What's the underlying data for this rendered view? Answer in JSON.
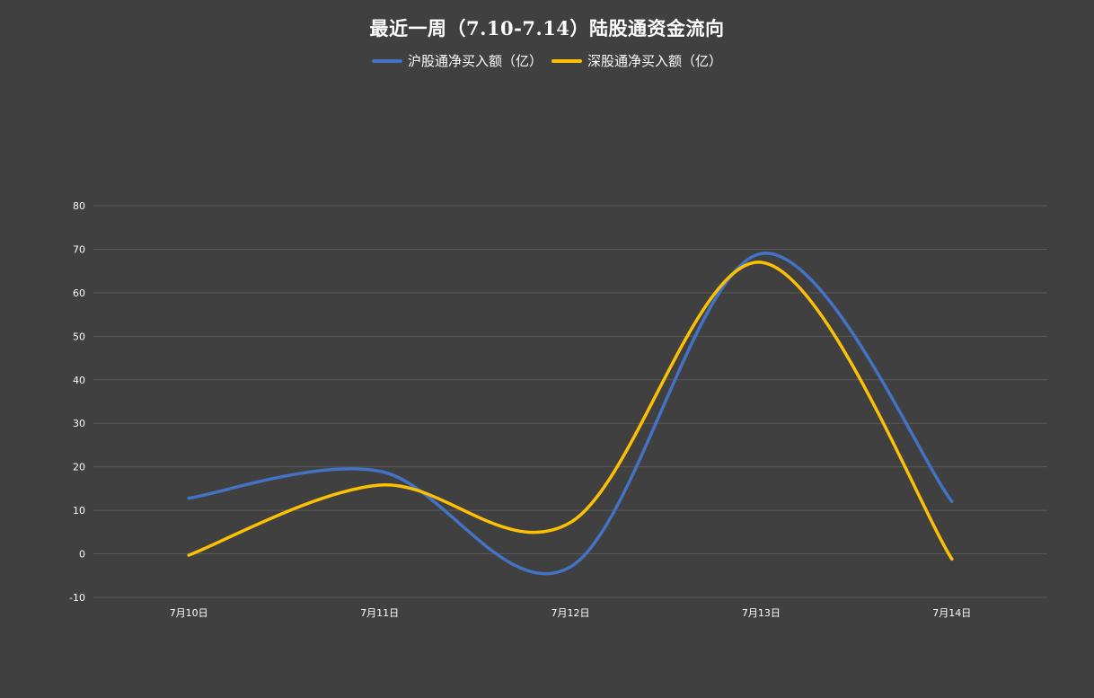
{
  "chart_data": {
    "type": "line",
    "title": "最近一周（7.10-7.14）陆股通资金流向",
    "categories": [
      "7月10日",
      "7月11日",
      "7月12日",
      "7月13日",
      "7月14日"
    ],
    "series": [
      {
        "name": "沪股通净买入额（亿）",
        "color": "#4472c4",
        "values": [
          12.8,
          19,
          -3,
          69,
          12
        ]
      },
      {
        "name": "深股通净买入额（亿）",
        "color": "#ffc000",
        "values": [
          -0.3,
          15.8,
          7.2,
          67,
          -1.2
        ]
      }
    ],
    "ylim": [
      -10,
      80
    ],
    "yticks": [
      -10,
      0,
      10,
      20,
      30,
      40,
      50,
      60,
      70,
      80
    ],
    "ytick_labels": [
      "-10",
      "0",
      "10",
      "20",
      "30",
      "40",
      "50",
      "60",
      "70",
      "80"
    ],
    "smooth": true,
    "grid": true,
    "legend_position": "top",
    "background_color": "#404040",
    "grid_color": "#595959"
  }
}
